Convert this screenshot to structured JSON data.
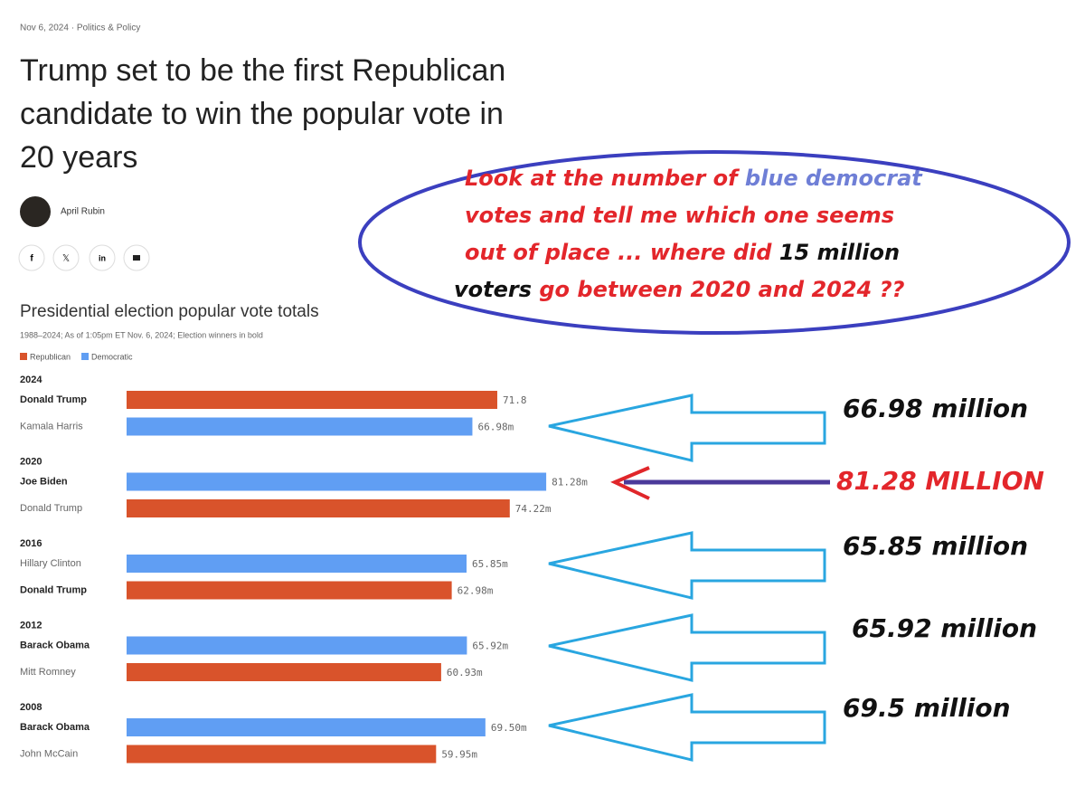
{
  "article": {
    "meta": "Nov 6, 2024 · Politics & Policy",
    "title_lines": [
      "Trump set to be the first Republican",
      "candidate to win the popular vote in",
      "20 years"
    ],
    "author": "April Rubin",
    "share": [
      "f",
      "𝕏",
      "in"
    ]
  },
  "chart_data": {
    "type": "bar",
    "orientation": "horizontal",
    "title": "Presidential election popular vote totals",
    "subtitle": "1988–2024; As of 1:05pm ET Nov. 6, 2024; Election winners in bold",
    "categories": [
      "2024",
      "2020",
      "2016",
      "2012",
      "2008"
    ],
    "series": [
      {
        "name": "Republican",
        "color": "#d9532b",
        "candidates": [
          "Donald Trump",
          "Donald Trump",
          "Donald Trump",
          "Mitt Romney",
          "John McCain"
        ],
        "values": [
          71.8,
          74.22,
          62.98,
          60.93,
          59.95
        ],
        "value_labels": [
          "71.8",
          "74.22m",
          "62.98m",
          "60.93m",
          "59.95m"
        ]
      },
      {
        "name": "Democratic",
        "color": "#609ef3",
        "candidates": [
          "Kamala Harris",
          "Joe Biden",
          "Hillary Clinton",
          "Barack Obama",
          "Barack Obama"
        ],
        "values": [
          66.98,
          81.28,
          65.85,
          65.92,
          69.5
        ],
        "value_labels": [
          "66.98m",
          "81.28m",
          "65.85m",
          "65.92m",
          "69.50m"
        ]
      }
    ],
    "order": [
      [
        0,
        1
      ],
      [
        1,
        0
      ],
      [
        1,
        0
      ],
      [
        1,
        0
      ],
      [
        1,
        0
      ]
    ],
    "bold": [
      0,
      1,
      0,
      1,
      1
    ],
    "xlim": [
      0,
      100
    ]
  },
  "annotations": {
    "callout": [
      [
        {
          "text": "Look at the number of ",
          "color": "#e3262b"
        },
        {
          "text": "blue democrat",
          "color": "#6f7fd6"
        }
      ],
      [
        {
          "text": "votes and tell me which one seems",
          "color": "#e3262b"
        }
      ],
      [
        {
          "text": "out of place ... where did ",
          "color": "#e3262b"
        },
        {
          "text": "15 million",
          "color": "#111111"
        }
      ],
      [
        {
          "text": "voters",
          "color": "#111111"
        },
        {
          "text": " go between 2020 and 2024 ??",
          "color": "#e3262b"
        }
      ]
    ],
    "labels": [
      {
        "text": "66.98 million",
        "color": "#111111"
      },
      {
        "text": "81.28 MILLION",
        "color": "#e3262b"
      },
      {
        "text": "65.85 million",
        "color": "#111111"
      },
      {
        "text": "65.92 million",
        "color": "#111111"
      },
      {
        "text": "69.5 million",
        "color": "#111111"
      }
    ]
  }
}
